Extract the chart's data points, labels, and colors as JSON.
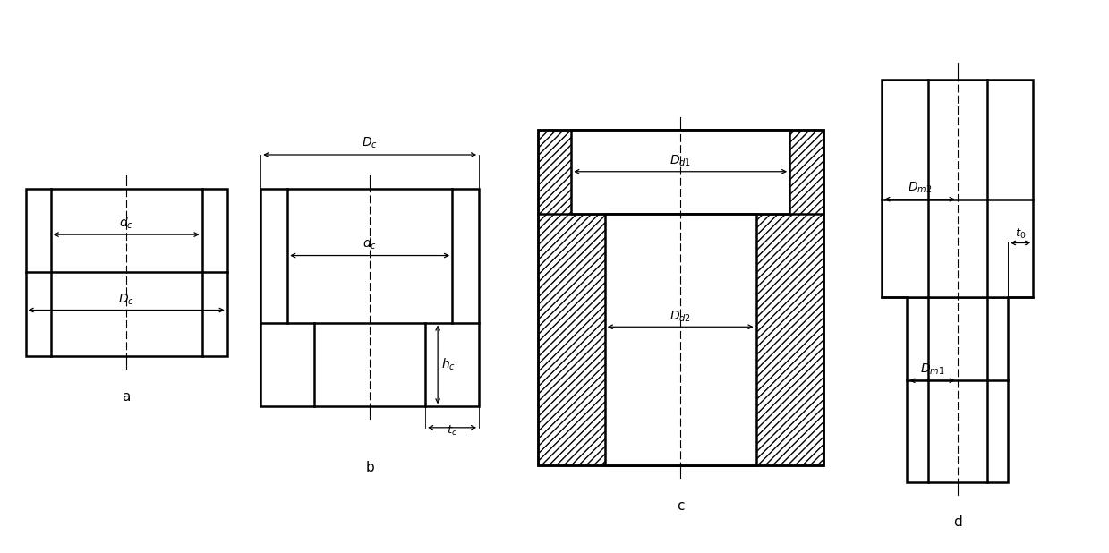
{
  "background_color": "#ffffff",
  "line_color": "#000000",
  "fig_width": 12.39,
  "fig_height": 6.18,
  "labels": {
    "a": "a",
    "b": "b",
    "c": "c",
    "d": "d",
    "dc_small": "$d_c$",
    "Dc_big": "$D_c$",
    "hc": "$h_c$",
    "tc": "$t_c$",
    "Dd1": "$D_{d1}$",
    "Dd2": "$D_{d2}$",
    "Dm2": "$D_{m2}$",
    "Dm1": "$D_{m1}$",
    "t0": "$t_0$"
  }
}
